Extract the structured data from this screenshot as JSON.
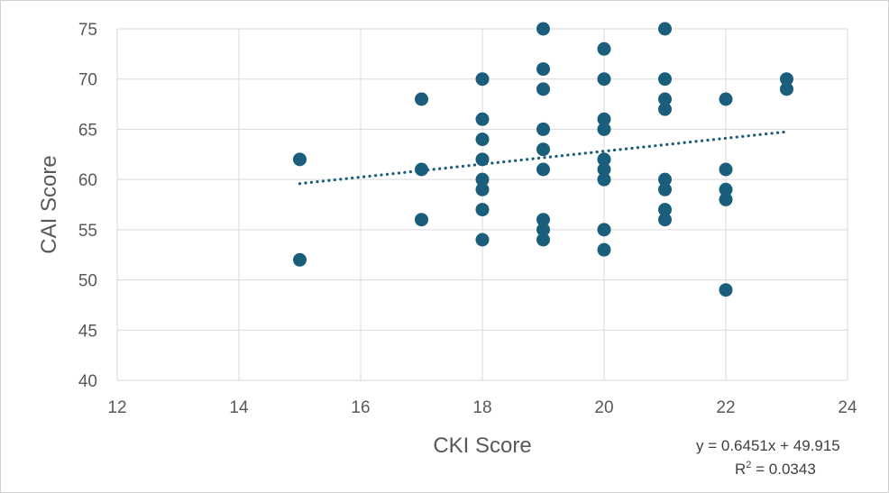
{
  "chart_data": {
    "type": "scatter",
    "xlabel": "CKI Score",
    "ylabel": "CAI Score",
    "xlim": [
      12,
      24
    ],
    "ylim": [
      40,
      75
    ],
    "x_ticks": [
      "12",
      "14",
      "16",
      "18",
      "20",
      "22",
      "24"
    ],
    "y_ticks": [
      "40",
      "45",
      "50",
      "55",
      "60",
      "65",
      "70",
      "75"
    ],
    "grid": true,
    "legend": "none",
    "marker_color": "#1b5e7b",
    "trendline": {
      "type": "linear",
      "slope": 0.6451,
      "intercept": 49.915,
      "x_range": [
        15,
        23
      ],
      "style": "dotted",
      "color": "#1b5e7b",
      "equation_label": "y = 0.6451x + 49.915",
      "r2_label_prefix": "R",
      "r2_label_exp": "2",
      "r2_label_value": " = 0.0343"
    },
    "series": [
      {
        "points": [
          [
            15,
            62
          ],
          [
            15,
            52
          ],
          [
            17,
            68
          ],
          [
            17,
            61
          ],
          [
            17,
            56
          ],
          [
            18,
            70
          ],
          [
            18,
            66
          ],
          [
            18,
            64
          ],
          [
            18,
            62
          ],
          [
            18,
            60
          ],
          [
            18,
            59
          ],
          [
            18,
            57
          ],
          [
            18,
            54
          ],
          [
            19,
            75
          ],
          [
            19,
            71
          ],
          [
            19,
            69
          ],
          [
            19,
            65
          ],
          [
            19,
            63
          ],
          [
            19,
            61
          ],
          [
            19,
            56
          ],
          [
            19,
            55
          ],
          [
            19,
            54
          ],
          [
            20,
            73
          ],
          [
            20,
            70
          ],
          [
            20,
            66
          ],
          [
            20,
            65
          ],
          [
            20,
            62
          ],
          [
            20,
            61
          ],
          [
            20,
            60
          ],
          [
            20,
            55
          ],
          [
            20,
            53
          ],
          [
            21,
            75
          ],
          [
            21,
            70
          ],
          [
            21,
            68
          ],
          [
            21,
            67
          ],
          [
            21,
            60
          ],
          [
            21,
            59
          ],
          [
            21,
            57
          ],
          [
            21,
            56
          ],
          [
            22,
            68
          ],
          [
            22,
            61
          ],
          [
            22,
            59
          ],
          [
            22,
            58
          ],
          [
            22,
            49
          ],
          [
            23,
            70
          ],
          [
            23,
            69
          ]
        ]
      }
    ]
  }
}
